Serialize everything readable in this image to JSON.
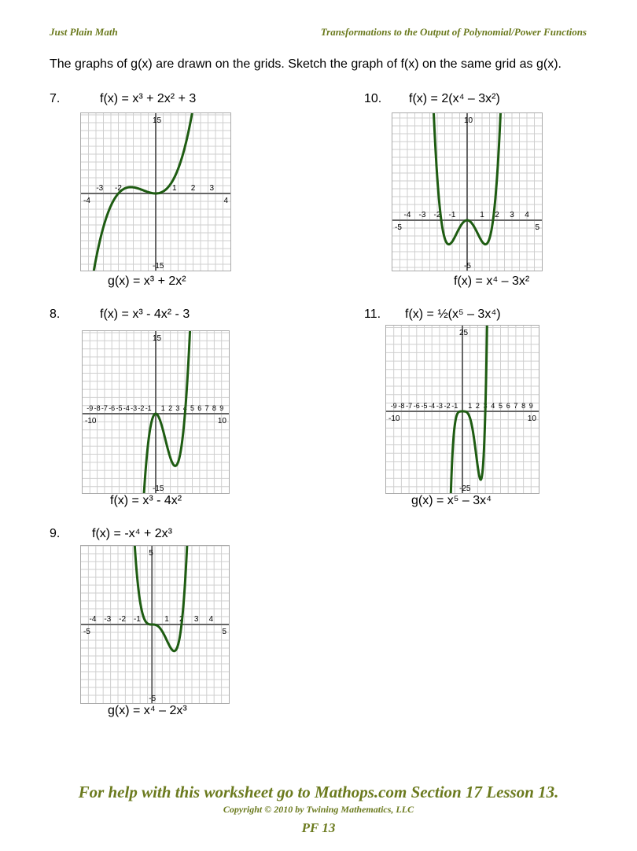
{
  "header": {
    "left": "Just Plain Math",
    "right": "Transformations to the Output of Polynomial/Power Functions"
  },
  "instructions": "The graphs of g(x) are drawn on the grids.  Sketch the graph of f(x) on the same grid as g(x).",
  "problems": [
    {
      "number": "7.",
      "title": "f(x) = x³ + 2x² + 3",
      "caption": "g(x) = x³ + 2x²",
      "range": 4,
      "ymax": 15,
      "x_ticks": [
        "-3",
        "-2",
        "1",
        "2",
        "3"
      ],
      "x_ends": [
        "-4",
        "4"
      ],
      "y_ends": [
        "15",
        "-15"
      ],
      "curve": "g(x) = x^3 + 2x^2"
    },
    {
      "number": "8.",
      "title": "f(x) = x³ - 4x² - 3",
      "caption": "f(x) = x³ - 4x²",
      "range": 10,
      "ymax": 15,
      "x_ticks": [
        "-9",
        "-8",
        "-7",
        "-6",
        "-5",
        "-4",
        "-3",
        "-2",
        "-1",
        "1",
        "2",
        "3",
        "4",
        "5",
        "6",
        "7",
        "8",
        "9"
      ],
      "x_ends": [
        "-10",
        "10"
      ],
      "y_ends": [
        "15",
        "-15"
      ],
      "curve": "x^3 - 4x^2"
    },
    {
      "number": "9.",
      "title": "f(x) = -x⁴ + 2x³",
      "caption": "g(x) = x⁴ – 2x³",
      "range": 5,
      "ymax": 5,
      "x_ticks": [
        "-4",
        "-3",
        "-2",
        "-1",
        "1",
        "2",
        "3",
        "4"
      ],
      "x_ends": [
        "-5",
        "5"
      ],
      "y_ends": [
        "5",
        "-5"
      ],
      "curve": "g(x) = x^4 - 2x^3"
    },
    {
      "number": "10.",
      "title": "f(x) = 2(x⁴ – 3x²)",
      "caption": "f(x) = x⁴ – 3x²",
      "range": 5,
      "ymax": 10,
      "x_ticks": [
        "-4",
        "-3",
        "-2",
        "-1",
        "1",
        "2",
        "3",
        "4"
      ],
      "x_ends": [
        "-5",
        "5"
      ],
      "y_ends": [
        "10",
        "-5"
      ],
      "curve": "x^4 - 3x^2"
    },
    {
      "number": "11.",
      "title": "f(x) = ½(x⁵ – 3x⁴)",
      "caption": "g(x) = x⁵ – 3x⁴",
      "range": 10,
      "ymax": 25,
      "x_ticks": [
        "-9",
        "-8",
        "-7",
        "-6",
        "-5",
        "-4",
        "-3",
        "-2",
        "-1",
        "1",
        "2",
        "3",
        "4",
        "5",
        "6",
        "7",
        "8",
        "9"
      ],
      "x_ends": [
        "-10",
        "10"
      ],
      "y_ends": [
        "25",
        "-25"
      ],
      "curve": "g(x) = x^5 - 3x^4"
    }
  ],
  "footer": {
    "main": "For help with this worksheet go to Mathops.com Section 17 Lesson 13.",
    "copyright": "Copyright © 2010 by Twining Mathematics, LLC",
    "page": "PF 13"
  },
  "colors": {
    "header": "#6b7a1e",
    "curve": "#1e5c12",
    "grid": "#cfcfcf",
    "axis": "#666666"
  }
}
